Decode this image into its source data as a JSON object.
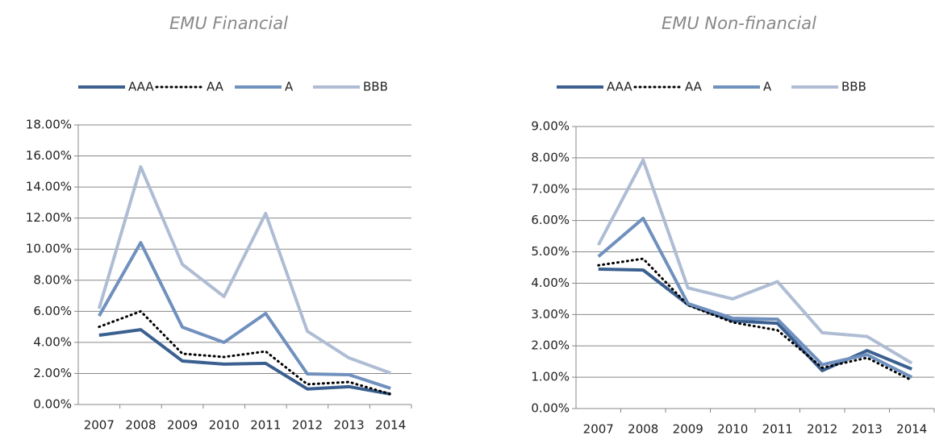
{
  "chart_data": [
    {
      "type": "line",
      "title": "EMU Financial",
      "categories": [
        "2007",
        "2008",
        "2009",
        "2010",
        "2011",
        "2012",
        "2013",
        "2014"
      ],
      "series": [
        {
          "name": "AAA",
          "color": "#3b6090",
          "style": "solid",
          "values": [
            4.46,
            4.82,
            2.8,
            2.6,
            2.65,
            1.0,
            1.15,
            0.67
          ]
        },
        {
          "name": "AA",
          "color": "#000000",
          "style": "dotted",
          "values": [
            5.0,
            6.0,
            3.27,
            3.06,
            3.42,
            1.3,
            1.45,
            0.67
          ]
        },
        {
          "name": "A",
          "color": "#7090be",
          "style": "solid",
          "values": [
            5.7,
            10.42,
            4.98,
            4.0,
            5.86,
            1.97,
            1.92,
            1.04
          ]
        },
        {
          "name": "BBB",
          "color": "#aebdd4",
          "style": "solid",
          "values": [
            6.17,
            15.3,
            9.02,
            6.95,
            12.3,
            4.72,
            3.0,
            2.02
          ]
        }
      ],
      "ylim": [
        0,
        18
      ],
      "yticks": [
        {
          "value": 0,
          "label": "0.00%"
        },
        {
          "value": 2,
          "label": "2.00%"
        },
        {
          "value": 4,
          "label": "4.00%"
        },
        {
          "value": 6,
          "label": "6.00%"
        },
        {
          "value": 8,
          "label": "8.00%"
        },
        {
          "value": 10,
          "label": "10.00%"
        },
        {
          "value": 12,
          "label": "12.00%"
        },
        {
          "value": 14,
          "label": "14.00%"
        },
        {
          "value": 16,
          "label": "16.00%"
        },
        {
          "value": 18,
          "label": "18.00%"
        }
      ],
      "grid": true,
      "legend": "top"
    },
    {
      "type": "line",
      "title": "EMU Non-financial",
      "categories": [
        "2007",
        "2008",
        "2009",
        "2010",
        "2011",
        "2012",
        "2013",
        "2014"
      ],
      "series": [
        {
          "name": "AAA",
          "color": "#3b6090",
          "style": "solid",
          "values": [
            4.45,
            4.42,
            3.32,
            2.8,
            2.72,
            1.21,
            1.85,
            1.26
          ]
        },
        {
          "name": "AA",
          "color": "#000000",
          "style": "dotted",
          "values": [
            4.57,
            4.78,
            3.3,
            2.75,
            2.5,
            1.3,
            1.62,
            0.9
          ]
        },
        {
          "name": "A",
          "color": "#7090be",
          "style": "solid",
          "values": [
            4.85,
            6.07,
            3.35,
            2.88,
            2.85,
            1.4,
            1.72,
            1.0
          ]
        },
        {
          "name": "BBB",
          "color": "#aebdd4",
          "style": "solid",
          "values": [
            5.22,
            7.93,
            3.85,
            3.5,
            4.05,
            2.42,
            2.3,
            1.45
          ]
        }
      ],
      "ylim": [
        0,
        9
      ],
      "yticks": [
        {
          "value": 0,
          "label": "0.00%"
        },
        {
          "value": 1,
          "label": "1.00%"
        },
        {
          "value": 2,
          "label": "2.00%"
        },
        {
          "value": 3,
          "label": "3.00%"
        },
        {
          "value": 4,
          "label": "4.00%"
        },
        {
          "value": 5,
          "label": "5.00%"
        },
        {
          "value": 6,
          "label": "6.00%"
        },
        {
          "value": 7,
          "label": "7.00%"
        },
        {
          "value": 8,
          "label": "8.00%"
        },
        {
          "value": 9,
          "label": "9.00%"
        }
      ],
      "grid": true,
      "legend": "top"
    }
  ]
}
